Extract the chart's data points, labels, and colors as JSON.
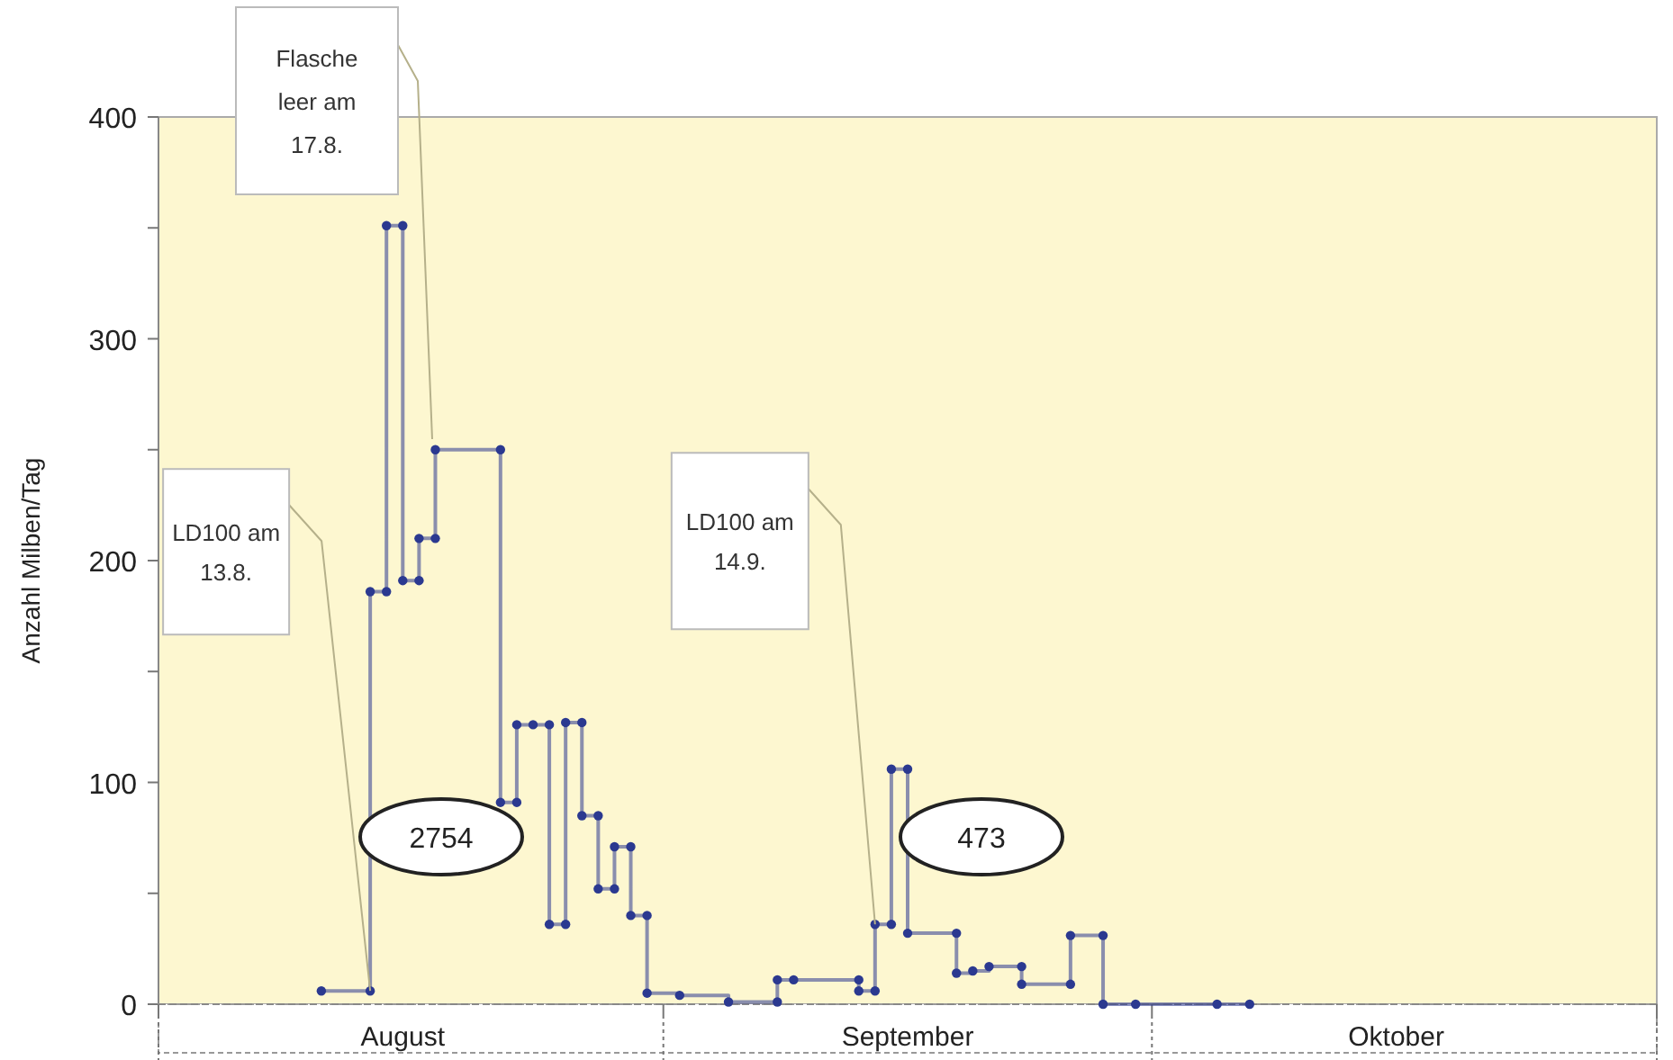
{
  "chart_data": {
    "type": "step",
    "ylabel": "Anzahl Milben/Tag",
    "marker": "circle",
    "grid": false,
    "xlim": [
      "--08-01",
      "--11-01"
    ],
    "xticks": [
      {
        "value": "--08-01",
        "label": null
      },
      {
        "value": "--08-16",
        "label": "August"
      },
      {
        "value": "--09-01",
        "label": null
      },
      {
        "value": "--09-16",
        "label": "September"
      },
      {
        "value": "--10-01",
        "label": null
      },
      {
        "value": "--10-16",
        "label": "Oktober"
      },
      {
        "value": "--11-01",
        "label": null
      }
    ],
    "ylim": [
      0,
      400
    ],
    "yticks": [
      0,
      {
        "value": 50,
        "label": null
      },
      100,
      {
        "value": 150,
        "label": null
      },
      200,
      {
        "value": 250,
        "label": null
      },
      300,
      {
        "value": 350,
        "label": null
      },
      400
    ],
    "series": [
      {
        "color": "#2b3990",
        "x": [
          "--08-11",
          "--08-14",
          "--08-14",
          "--08-15",
          "--08-15",
          "--08-16",
          "--08-16",
          "--08-17",
          "--08-17",
          "--08-18",
          "--08-18",
          "--08-22",
          "--08-22",
          "--08-23",
          "--08-23",
          "--08-24",
          "--08-25",
          "--08-25",
          "--08-26",
          "--08-26",
          "--08-27",
          "--08-27",
          "--08-28",
          "--08-28",
          "--08-29",
          "--08-29",
          "--08-30",
          "--08-30",
          "--08-31",
          "--08-31",
          "--09-02",
          "--09-05",
          "--09-08",
          "--09-08",
          "--09-09",
          "--09-13",
          "--09-13",
          "--09-14",
          "--09-14",
          "--09-15",
          "--09-15",
          "--09-16",
          "--09-16",
          "--09-19",
          "--09-19",
          "--09-20",
          "--09-21",
          "--09-23",
          "--09-23",
          "--09-26",
          "--09-26",
          "--09-28",
          "--09-28",
          "--09-30",
          "--10-05",
          "--10-07"
        ],
        "values": [
          6,
          6,
          186,
          186,
          351,
          351,
          191,
          191,
          210,
          210,
          250,
          250,
          91,
          91,
          126,
          126,
          126,
          36,
          36,
          127,
          127,
          85,
          85,
          52,
          52,
          71,
          71,
          40,
          40,
          5,
          4,
          1,
          1,
          11,
          11,
          11,
          6,
          6,
          36,
          36,
          106,
          106,
          32,
          32,
          14,
          15,
          17,
          17,
          9,
          9,
          31,
          31,
          0,
          0,
          0,
          0
        ]
      }
    ],
    "annotations": [
      {
        "text": "LD100 am 13.8.",
        "x": "--08-14",
        "y": 6
      },
      "Flasche leer am 17.8.",
      {
        "text": "LD100 am 14.9.",
        "x": "--09-14",
        "y": 36
      },
      "2754",
      "473"
    ]
  }
}
